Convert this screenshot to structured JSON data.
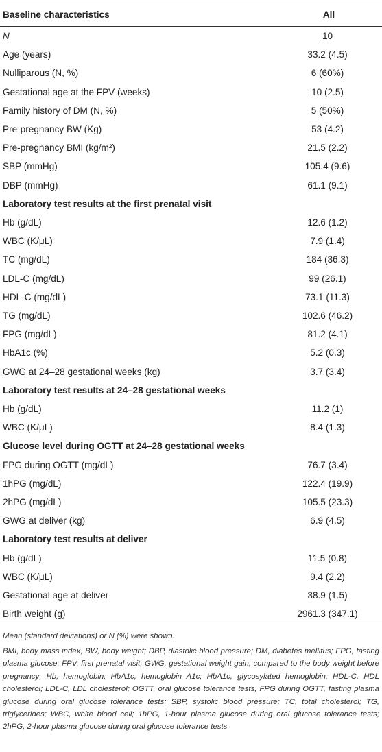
{
  "table": {
    "header": {
      "col1": "Baseline characteristics",
      "col2": "All"
    },
    "rows": [
      {
        "type": "row",
        "label": "N",
        "value": "10",
        "italic": true
      },
      {
        "type": "row",
        "label": "Age (years)",
        "value": "33.2 (4.5)"
      },
      {
        "type": "row",
        "label": "Nulliparous (N, %)",
        "value": "6 (60%)"
      },
      {
        "type": "row",
        "label": "Gestational age at the FPV (weeks)",
        "value": "10 (2.5)"
      },
      {
        "type": "row",
        "label": "Family history of DM (N, %)",
        "value": "5 (50%)"
      },
      {
        "type": "row",
        "label": "Pre-pregnancy BW (Kg)",
        "value": "53 (4.2)"
      },
      {
        "type": "row",
        "label": "Pre-pregnancy BMI (kg/m²)",
        "value": "21.5 (2.2)"
      },
      {
        "type": "row",
        "label": "SBP (mmHg)",
        "value": "105.4 (9.6)"
      },
      {
        "type": "row",
        "label": "DBP (mmHg)",
        "value": "61.1 (9.1)"
      },
      {
        "type": "section",
        "label": "Laboratory test results at the first prenatal visit"
      },
      {
        "type": "row",
        "label": "Hb (g/dL)",
        "value": "12.6 (1.2)"
      },
      {
        "type": "row",
        "label": "WBC (K/μL)",
        "value": "7.9 (1.4)"
      },
      {
        "type": "row",
        "label": "TC (mg/dL)",
        "value": "184 (36.3)"
      },
      {
        "type": "row",
        "label": "LDL-C (mg/dL)",
        "value": "99 (26.1)"
      },
      {
        "type": "row",
        "label": "HDL-C (mg/dL)",
        "value": "73.1 (11.3)"
      },
      {
        "type": "row",
        "label": "TG (mg/dL)",
        "value": "102.6 (46.2)"
      },
      {
        "type": "row",
        "label": "FPG (mg/dL)",
        "value": "81.2 (4.1)"
      },
      {
        "type": "row",
        "label": "HbA1c (%)",
        "value": "5.2 (0.3)"
      },
      {
        "type": "row",
        "label": "GWG at 24–28 gestational weeks (kg)",
        "value": "3.7 (3.4)"
      },
      {
        "type": "section",
        "label": "Laboratory test results at 24–28 gestational weeks"
      },
      {
        "type": "row",
        "label": "Hb (g/dL)",
        "value": "11.2 (1)"
      },
      {
        "type": "row",
        "label": "WBC (K/μL)",
        "value": "8.4 (1.3)"
      },
      {
        "type": "section",
        "label": "Glucose level during OGTT at 24–28 gestational weeks"
      },
      {
        "type": "row",
        "label": "FPG during OGTT (mg/dL)",
        "value": "76.7 (3.4)"
      },
      {
        "type": "row",
        "label": "1hPG (mg/dL)",
        "value": "122.4 (19.9)"
      },
      {
        "type": "row",
        "label": "2hPG (mg/dL)",
        "value": "105.5 (23.3)"
      },
      {
        "type": "row",
        "label": "GWG at deliver (kg)",
        "value": "6.9 (4.5)"
      },
      {
        "type": "section",
        "label": "Laboratory test results at deliver"
      },
      {
        "type": "row",
        "label": "Hb (g/dL)",
        "value": "11.5 (0.8)"
      },
      {
        "type": "row",
        "label": "WBC (K/μL)",
        "value": "9.4 (2.2)"
      },
      {
        "type": "row",
        "label": "Gestational age at deliver",
        "value": "38.9 (1.5)"
      },
      {
        "type": "row",
        "label": "Birth weight (g)",
        "value": "2961.3 (347.1)"
      }
    ]
  },
  "notes": {
    "summary": "Mean (standard deviations) or N (%) were shown.",
    "abbreviations": "BMI, body mass index; BW, body weight; DBP, diastolic blood pressure; DM, diabetes mellitus; FPG, fasting plasma glucose; FPV, first prenatal visit; GWG, gestational weight gain, compared to the body weight before pregnancy; Hb, hemoglobin; HbA1c, hemoglobin A1c; HbA1c, glycosylated hemoglobin; HDL-C, HDL cholesterol; LDL-C, LDL cholesterol; OGTT, oral glucose tolerance tests; FPG during OGTT, fasting plasma glucose during oral glucose tolerance tests; SBP, systolic blood pressure; TC, total cholesterol; TG, triglycerides; WBC, white blood cell; 1hPG, 1-hour plasma glucose during oral glucose tolerance tests; 2hPG, 2-hour plasma glucose during oral glucose tolerance tests."
  }
}
